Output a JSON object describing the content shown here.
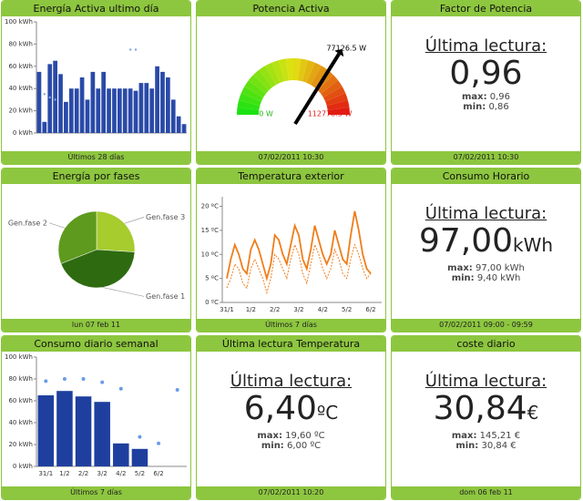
{
  "widgets": [
    {
      "title": "Energía Activa ultimo día",
      "footer": "Últimos 28 días",
      "chart": {
        "type": "bar",
        "ylim": [
          0,
          100
        ],
        "yticks": [
          {
            "value": 0,
            "label": "0 kWh"
          },
          {
            "value": 20,
            "label": "20 kWh"
          },
          {
            "value": 40,
            "label": "40 kWh"
          },
          {
            "value": 60,
            "label": "60 kWh"
          },
          {
            "value": 80,
            "label": "80 kWh"
          },
          {
            "value": 100,
            "label": "100 kWh"
          }
        ],
        "series": [
          {
            "color": "#2a4aa8",
            "values": [
              55,
              10,
              62,
              65,
              53,
              28,
              40,
              40,
              50,
              30,
              55,
              40,
              55,
              40,
              40,
              40,
              40,
              40,
              38,
              45,
              45,
              40,
              60,
              55,
              50,
              30,
              15,
              8
            ]
          },
          {
            "color": "#7fa6ea",
            "values": [
              null,
              35,
              32,
              30,
              null,
              null,
              null,
              null,
              null,
              null,
              null,
              null,
              null,
              null,
              null,
              null,
              null,
              75,
              75,
              null,
              null,
              null,
              null,
              null,
              null,
              null,
              null,
              null
            ]
          }
        ]
      }
    },
    {
      "title": "Potencia Activa",
      "footer": "07/02/2011 10:30",
      "chart": {
        "type": "gauge",
        "value": 77126.5,
        "value_label": "77126.5 W",
        "min": 0,
        "min_label": "0 W",
        "max": 112778.5,
        "max_label": "112778.5 W"
      }
    },
    {
      "title": "Factor de Potencia",
      "footer": "07/02/2011 10:30",
      "reading": {
        "heading": "Última lectura:",
        "value": "0,96",
        "max_label": "max:",
        "max": "0,96",
        "min_label": "min:",
        "min": "0,86"
      }
    },
    {
      "title": "Energía por fases",
      "footer": "lun 07 feb 11",
      "chart": {
        "type": "pie",
        "categories": [
          "Gen.fase 3",
          "Gen.fase 1",
          "Gen.fase 2"
        ],
        "values": [
          26,
          43,
          31
        ],
        "colors": [
          "#a6cc2e",
          "#2e6b10",
          "#5e9a1e"
        ]
      }
    },
    {
      "title": "Temperatura exterior",
      "footer": "Últimos 7 días",
      "chart": {
        "type": "line",
        "ylim": [
          0,
          22
        ],
        "yticks": [
          {
            "value": 0,
            "label": "0 ºC"
          },
          {
            "value": 5,
            "label": "5 ºC"
          },
          {
            "value": 10,
            "label": "10 ºC"
          },
          {
            "value": 15,
            "label": "15 ºC"
          },
          {
            "value": 20,
            "label": "20 ºC"
          }
        ],
        "categories": [
          "31/1",
          "1/2",
          "2/2",
          "3/2",
          "4/2",
          "5/2",
          "6/2"
        ],
        "series": [
          {
            "color": "#f07d1a",
            "values": [
              5,
              9,
              12,
              10,
              7,
              6,
              11,
              13,
              11,
              8,
              5,
              8,
              14,
              13,
              10,
              8,
              12,
              16,
              14,
              9,
              7,
              11,
              16,
              13,
              10,
              8,
              10,
              15,
              12,
              9,
              8,
              14,
              19,
              15,
              10,
              7,
              6
            ]
          },
          {
            "color": "#f07d1a",
            "dashed": true,
            "values": [
              3,
              5,
              8,
              7,
              4,
              3,
              7,
              9,
              7,
              5,
              2,
              5,
              10,
              9,
              7,
              5,
              9,
              12,
              10,
              6,
              4,
              8,
              12,
              10,
              7,
              5,
              7,
              11,
              9,
              6,
              5,
              9,
              12,
              10,
              7,
              5,
              6
            ]
          }
        ]
      }
    },
    {
      "title": "Consumo Horario",
      "footer": "07/02/2011 09:00 - 09:59",
      "reading": {
        "heading": "Última lectura:",
        "value": "97,00",
        "unit": "kWh",
        "max_label": "max:",
        "max": "97,00 kWh",
        "min_label": "min:",
        "min": "9,40 kWh"
      }
    },
    {
      "title": "Consumo diario semanal",
      "footer": "Últimos 7 días",
      "chart": {
        "type": "bar",
        "ylim": [
          0,
          100
        ],
        "yticks": [
          {
            "value": 0,
            "label": "0 kWh"
          },
          {
            "value": 20,
            "label": "20 kWh"
          },
          {
            "value": 40,
            "label": "40 kWh"
          },
          {
            "value": 60,
            "label": "60 kWh"
          },
          {
            "value": 80,
            "label": "80 kWh"
          },
          {
            "value": 100,
            "label": "100 kWh"
          }
        ],
        "categories": [
          "31/1",
          "1/2",
          "2/2",
          "3/2",
          "4/2",
          "5/2",
          "6/2",
          null
        ],
        "series": [
          {
            "color": "#1f3f9f",
            "values": [
              65,
              69,
              64,
              59,
              21,
              16,
              null,
              null
            ]
          },
          {
            "color": "#6b9be8",
            "values": [
              78,
              80,
              80,
              77,
              71,
              27,
              21,
              70
            ]
          }
        ]
      }
    },
    {
      "title": "Última lectura Temperatura",
      "footer": "07/02/2011 10:20",
      "reading": {
        "heading": "Última lectura:",
        "value": "6,40",
        "unit": "ºC",
        "max_label": "max:",
        "max": "19,60 ºC",
        "min_label": "min:",
        "min": "6,00 ºC"
      }
    },
    {
      "title": "coste diario",
      "footer": "dom 06 feb 11",
      "reading": {
        "heading": "Última lectura:",
        "value": "30,84",
        "unit": "€",
        "max_label": "max:",
        "max": "145,21 €",
        "min_label": "min:",
        "min": "30,84 €"
      }
    }
  ]
}
